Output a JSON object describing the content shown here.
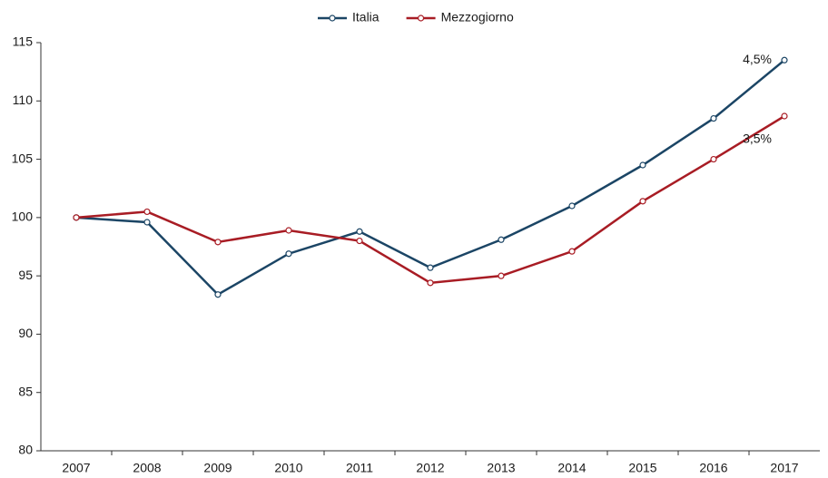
{
  "chart_data": {
    "type": "line",
    "categories": [
      "2007",
      "2008",
      "2009",
      "2010",
      "2011",
      "2012",
      "2013",
      "2014",
      "2015",
      "2016",
      "2017"
    ],
    "series": [
      {
        "name": "Italia",
        "color": "#1b4565",
        "values": [
          100,
          99.6,
          93.4,
          96.9,
          98.8,
          95.7,
          98.1,
          101,
          104.5,
          108.5,
          113.5
        ],
        "end_label": "4,5%"
      },
      {
        "name": "Mezzogiorno",
        "color": "#a81c24",
        "values": [
          100,
          100.5,
          97.9,
          98.9,
          98.0,
          94.4,
          95.0,
          97.1,
          101.4,
          105.0,
          108.7
        ],
        "end_label": "3,5%"
      }
    ],
    "ylim": [
      80,
      115
    ],
    "yticks": [
      80,
      85,
      90,
      95,
      100,
      105,
      110,
      115
    ],
    "grid": false,
    "legend": "top"
  }
}
